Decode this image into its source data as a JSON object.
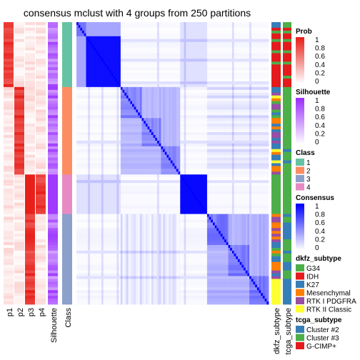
{
  "chart_data": {
    "type": "heatmap",
    "title": "consensus mclust with 4 groups from 250 partitions",
    "left_annotation_labels": [
      "p1",
      "p2",
      "p3",
      "p4",
      "Silhouette",
      "Class"
    ],
    "right_annotation_labels": [
      "dkfz_subtype",
      "tcga_subtype"
    ],
    "n_samples": 100,
    "group_sizes": [
      23,
      31,
      14,
      32
    ],
    "group_order": [
      1,
      2,
      4,
      3
    ],
    "legends": [
      {
        "title": "Prob",
        "kind": "gradient",
        "ticks": [
          "1",
          "0.8",
          "0.6",
          "0.4",
          "0.2",
          "0"
        ],
        "colors": [
          "#e8201a",
          "#ffffff"
        ]
      },
      {
        "title": "Silhouette",
        "kind": "gradient",
        "ticks": [
          "1",
          "0.8",
          "0.6",
          "0.4",
          "0.2",
          "0"
        ],
        "colors": [
          "#9b30ff",
          "#ffffff"
        ]
      },
      {
        "title": "Class",
        "kind": "discrete",
        "items": [
          {
            "label": "1",
            "color": "#66c2a5"
          },
          {
            "label": "2",
            "color": "#fc8d62"
          },
          {
            "label": "3",
            "color": "#8da0cb"
          },
          {
            "label": "4",
            "color": "#e78ac3"
          }
        ]
      },
      {
        "title": "Consensus",
        "kind": "gradient",
        "ticks": [
          "1",
          "0.8",
          "0.6",
          "0.4",
          "0.2",
          "0"
        ],
        "colors": [
          "#0000ff",
          "#ffffff"
        ]
      },
      {
        "title": "dkfz_subtype",
        "kind": "discrete",
        "items": [
          {
            "label": "G34",
            "color": "#4daf4a"
          },
          {
            "label": "IDH",
            "color": "#e41a1c"
          },
          {
            "label": "K27",
            "color": "#377eb8"
          },
          {
            "label": "Mesenchymal",
            "color": "#ff7f00"
          },
          {
            "label": "RTK I PDGFRA",
            "color": "#984ea3"
          },
          {
            "label": "RTK II Classic",
            "color": "#ffff33"
          }
        ]
      },
      {
        "title": "tcga_subtype",
        "kind": "discrete",
        "items": [
          {
            "label": "Cluster #2",
            "color": "#377eb8"
          },
          {
            "label": "Cluster #3",
            "color": "#4daf4a"
          },
          {
            "label": "G-CIMP+",
            "color": "#e41a1c"
          }
        ]
      }
    ]
  }
}
